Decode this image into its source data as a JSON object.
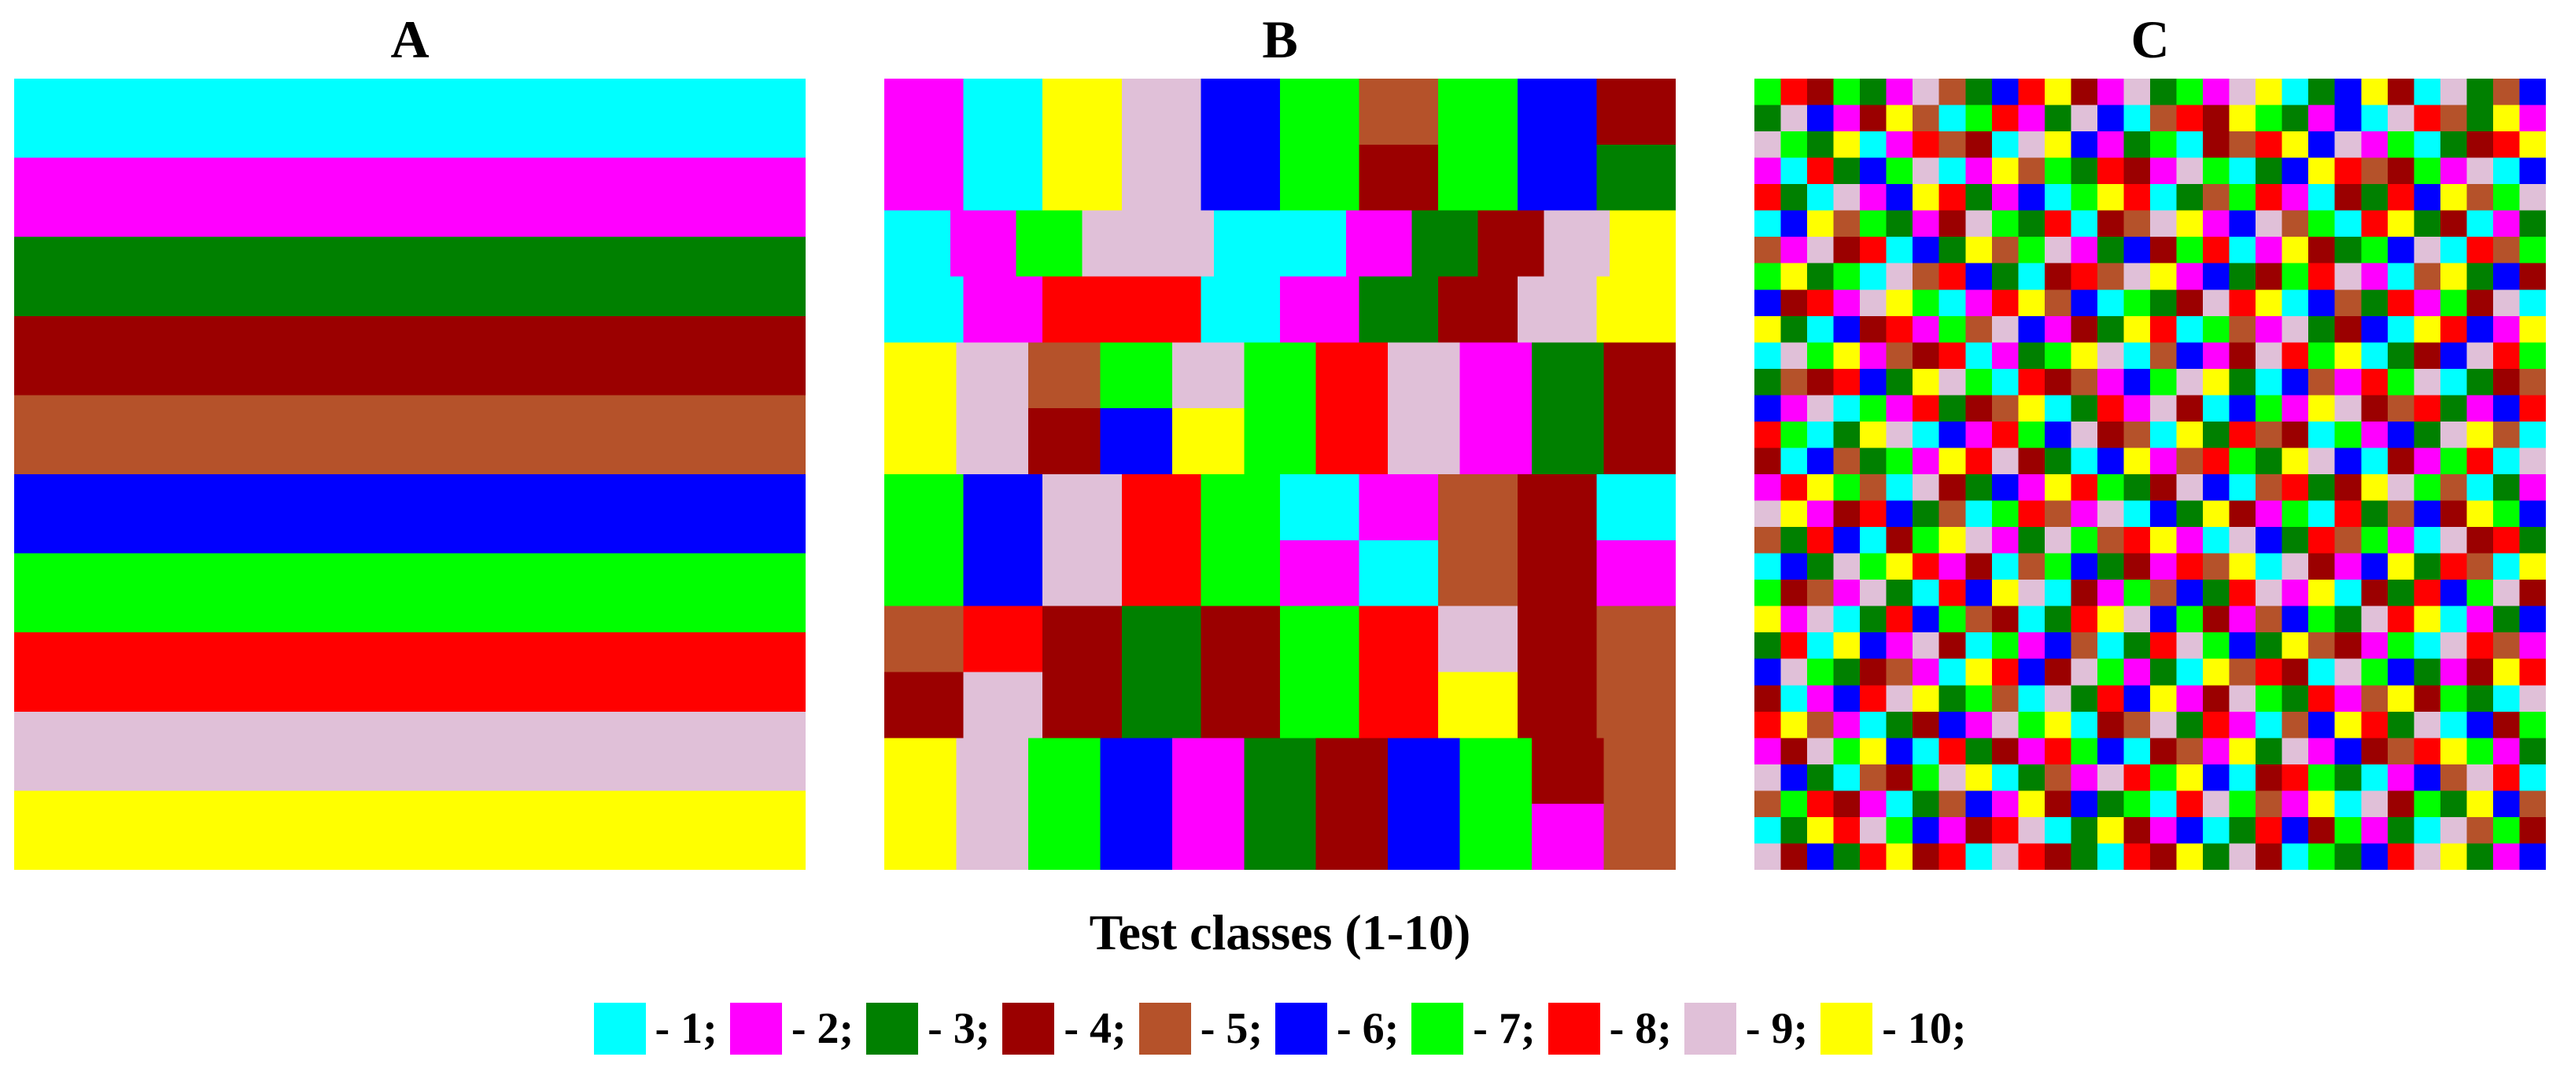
{
  "panels": [
    {
      "title": "A"
    },
    {
      "title": "B"
    },
    {
      "title": "C"
    }
  ],
  "caption": "Test classes (1-10)",
  "legend": [
    {
      "label": "- 1;",
      "color": "#00ffff"
    },
    {
      "label": "- 2;",
      "color": "#ff00ff"
    },
    {
      "label": "- 3;",
      "color": "#008000"
    },
    {
      "label": "- 4;",
      "color": "#9b0000"
    },
    {
      "label": "- 5;",
      "color": "#b5522a"
    },
    {
      "label": "- 6;",
      "color": "#0000ff"
    },
    {
      "label": "- 7;",
      "color": "#00ff00"
    },
    {
      "label": "- 8;",
      "color": "#ff0000"
    },
    {
      "label": "- 9;",
      "color": "#e0c0d8"
    },
    {
      "label": "- 10;",
      "color": "#ffff00"
    }
  ],
  "panel_a": {
    "stripe_classes": [
      1,
      2,
      3,
      4,
      5,
      6,
      7,
      8,
      9,
      10
    ]
  },
  "panel_b": {
    "grid": [
      [
        2,
        1,
        10,
        9,
        6,
        7,
        5,
        7,
        6,
        4
      ],
      [
        2,
        1,
        10,
        9,
        6,
        7,
        4,
        7,
        6,
        3
      ],
      [
        1,
        2,
        7,
        9,
        9,
        1,
        1,
        2,
        3,
        4,
        9,
        10
      ],
      [
        1,
        2,
        8,
        8,
        1,
        2,
        3,
        4,
        9,
        10
      ],
      [
        10,
        9,
        5,
        7,
        9,
        7,
        8,
        9,
        2,
        3,
        4
      ],
      [
        10,
        9,
        4,
        6,
        10,
        7,
        8,
        9,
        2,
        3,
        4
      ],
      [
        7,
        6,
        9,
        8,
        7,
        1,
        2,
        5,
        4,
        1
      ],
      [
        7,
        6,
        9,
        8,
        7,
        2,
        1,
        5,
        4,
        2
      ],
      [
        5,
        8,
        4,
        3,
        4,
        7,
        8,
        9,
        4,
        5
      ],
      [
        4,
        9,
        4,
        3,
        4,
        7,
        8,
        10,
        4,
        5
      ],
      [
        10,
        9,
        7,
        6,
        2,
        3,
        4,
        6,
        7,
        4,
        5
      ],
      [
        10,
        9,
        7,
        6,
        2,
        3,
        4,
        6,
        7,
        2,
        5
      ]
    ]
  },
  "panel_c": {
    "grid": [
      [
        7,
        8,
        4,
        7,
        3,
        2,
        9,
        5,
        3,
        6,
        8,
        10,
        4,
        2,
        9,
        3,
        7,
        2,
        9,
        10,
        1,
        3,
        6,
        10,
        4,
        1,
        9,
        3,
        5,
        6
      ],
      [
        3,
        9,
        6,
        2,
        4,
        10,
        5,
        1,
        7,
        8,
        2,
        3,
        9,
        6,
        1,
        5,
        8,
        4,
        10,
        7,
        3,
        2,
        6,
        1,
        9,
        8,
        5,
        3,
        10,
        2
      ],
      [
        9,
        7,
        3,
        10,
        1,
        2,
        8,
        5,
        4,
        1,
        9,
        10,
        6,
        2,
        3,
        7,
        1,
        4,
        5,
        8,
        10,
        6,
        9,
        2,
        7,
        1,
        3,
        4,
        8,
        10
      ],
      [
        2,
        1,
        8,
        3,
        6,
        7,
        9,
        1,
        2,
        10,
        5,
        7,
        3,
        8,
        4,
        2,
        9,
        7,
        1,
        3,
        6,
        10,
        8,
        5,
        4,
        7,
        2,
        9,
        1,
        6
      ],
      [
        8,
        3,
        1,
        9,
        2,
        6,
        10,
        8,
        3,
        2,
        6,
        1,
        7,
        10,
        8,
        1,
        3,
        5,
        7,
        8,
        2,
        1,
        4,
        3,
        8,
        6,
        10,
        5,
        7,
        9
      ],
      [
        1,
        6,
        10,
        5,
        7,
        3,
        2,
        4,
        9,
        7,
        3,
        8,
        1,
        4,
        5,
        9,
        10,
        2,
        6,
        9,
        5,
        7,
        1,
        8,
        10,
        3,
        4,
        1,
        2,
        3
      ],
      [
        5,
        2,
        9,
        4,
        8,
        1,
        6,
        3,
        10,
        5,
        7,
        9,
        2,
        3,
        6,
        4,
        7,
        8,
        1,
        2,
        10,
        4,
        3,
        7,
        6,
        9,
        1,
        8,
        5,
        7
      ],
      [
        7,
        10,
        3,
        7,
        1,
        9,
        5,
        8,
        6,
        3,
        1,
        4,
        8,
        5,
        9,
        10,
        2,
        6,
        3,
        4,
        7,
        8,
        9,
        2,
        1,
        5,
        10,
        3,
        6,
        4
      ],
      [
        6,
        4,
        8,
        2,
        9,
        10,
        7,
        1,
        2,
        8,
        10,
        5,
        6,
        1,
        7,
        3,
        4,
        9,
        8,
        10,
        1,
        6,
        5,
        3,
        8,
        2,
        7,
        4,
        9,
        1
      ],
      [
        10,
        3,
        1,
        6,
        4,
        8,
        2,
        7,
        5,
        9,
        6,
        2,
        4,
        3,
        10,
        8,
        1,
        7,
        5,
        2,
        9,
        3,
        4,
        6,
        1,
        10,
        8,
        6,
        2,
        10
      ],
      [
        1,
        9,
        7,
        10,
        2,
        5,
        4,
        8,
        1,
        2,
        3,
        7,
        10,
        9,
        1,
        5,
        6,
        2,
        4,
        9,
        8,
        7,
        10,
        1,
        3,
        4,
        6,
        9,
        8,
        7
      ],
      [
        3,
        5,
        4,
        8,
        6,
        3,
        10,
        9,
        7,
        1,
        8,
        4,
        5,
        2,
        6,
        7,
        9,
        10,
        3,
        1,
        6,
        5,
        2,
        8,
        7,
        9,
        1,
        3,
        4,
        5
      ],
      [
        6,
        2,
        9,
        1,
        7,
        2,
        8,
        3,
        4,
        5,
        10,
        1,
        3,
        8,
        2,
        9,
        4,
        1,
        6,
        7,
        2,
        10,
        9,
        4,
        5,
        8,
        3,
        2,
        6,
        8
      ],
      [
        8,
        7,
        1,
        3,
        10,
        9,
        1,
        6,
        2,
        8,
        7,
        6,
        9,
        4,
        5,
        1,
        10,
        3,
        8,
        5,
        4,
        1,
        7,
        2,
        6,
        3,
        9,
        10,
        5,
        1
      ],
      [
        4,
        1,
        6,
        5,
        3,
        7,
        2,
        10,
        8,
        9,
        4,
        3,
        1,
        6,
        10,
        2,
        5,
        8,
        7,
        3,
        10,
        9,
        6,
        1,
        4,
        2,
        7,
        8,
        1,
        9
      ],
      [
        2,
        8,
        10,
        7,
        5,
        1,
        9,
        4,
        3,
        6,
        2,
        10,
        8,
        7,
        3,
        4,
        9,
        6,
        1,
        5,
        8,
        3,
        4,
        10,
        9,
        7,
        5,
        1,
        3,
        2
      ],
      [
        9,
        10,
        2,
        4,
        8,
        6,
        3,
        5,
        1,
        7,
        8,
        5,
        2,
        9,
        1,
        6,
        3,
        10,
        4,
        2,
        7,
        1,
        8,
        3,
        5,
        6,
        4,
        10,
        7,
        6
      ],
      [
        5,
        3,
        8,
        6,
        1,
        4,
        7,
        10,
        9,
        2,
        3,
        9,
        7,
        5,
        8,
        10,
        2,
        1,
        9,
        6,
        3,
        8,
        5,
        7,
        2,
        1,
        9,
        4,
        8,
        3
      ],
      [
        1,
        6,
        3,
        9,
        7,
        10,
        8,
        2,
        4,
        1,
        5,
        7,
        6,
        3,
        4,
        2,
        8,
        5,
        10,
        1,
        9,
        4,
        2,
        6,
        10,
        3,
        8,
        5,
        1,
        10
      ],
      [
        7,
        4,
        5,
        2,
        9,
        3,
        1,
        8,
        6,
        10,
        9,
        1,
        4,
        2,
        7,
        5,
        6,
        3,
        8,
        9,
        2,
        10,
        1,
        4,
        3,
        8,
        6,
        7,
        9,
        4
      ],
      [
        10,
        2,
        9,
        1,
        3,
        8,
        6,
        7,
        5,
        4,
        1,
        3,
        8,
        10,
        9,
        6,
        7,
        4,
        2,
        5,
        6,
        7,
        3,
        9,
        8,
        10,
        1,
        2,
        3,
        6
      ],
      [
        3,
        8,
        1,
        10,
        6,
        2,
        9,
        4,
        1,
        7,
        2,
        6,
        5,
        1,
        3,
        8,
        9,
        7,
        6,
        3,
        10,
        5,
        4,
        2,
        7,
        1,
        9,
        8,
        5,
        2
      ],
      [
        6,
        9,
        7,
        3,
        4,
        5,
        2,
        1,
        10,
        8,
        6,
        4,
        9,
        7,
        2,
        3,
        1,
        10,
        5,
        8,
        4,
        1,
        9,
        7,
        6,
        3,
        2,
        4,
        10,
        8
      ],
      [
        4,
        1,
        2,
        6,
        8,
        9,
        10,
        3,
        7,
        5,
        1,
        9,
        3,
        8,
        6,
        10,
        2,
        4,
        9,
        7,
        3,
        8,
        2,
        5,
        10,
        4,
        7,
        3,
        1,
        9
      ],
      [
        8,
        10,
        5,
        2,
        1,
        3,
        4,
        6,
        2,
        9,
        7,
        10,
        1,
        4,
        5,
        9,
        3,
        8,
        2,
        1,
        5,
        6,
        10,
        8,
        3,
        9,
        1,
        6,
        4,
        7
      ],
      [
        2,
        4,
        9,
        7,
        10,
        6,
        1,
        8,
        3,
        4,
        2,
        8,
        7,
        6,
        1,
        4,
        5,
        2,
        10,
        3,
        9,
        2,
        6,
        4,
        5,
        8,
        10,
        7,
        2,
        3
      ],
      [
        9,
        6,
        3,
        1,
        5,
        4,
        7,
        9,
        10,
        1,
        3,
        5,
        2,
        9,
        8,
        7,
        10,
        6,
        1,
        4,
        8,
        7,
        3,
        1,
        2,
        6,
        5,
        9,
        8,
        1
      ],
      [
        5,
        7,
        8,
        4,
        2,
        1,
        3,
        5,
        6,
        2,
        10,
        4,
        6,
        3,
        7,
        1,
        8,
        9,
        7,
        5,
        2,
        10,
        1,
        9,
        4,
        7,
        3,
        10,
        6,
        5
      ],
      [
        1,
        3,
        10,
        8,
        9,
        7,
        6,
        2,
        4,
        8,
        9,
        1,
        3,
        10,
        4,
        2,
        6,
        1,
        3,
        8,
        6,
        4,
        7,
        2,
        3,
        1,
        9,
        5,
        7,
        4
      ],
      [
        9,
        4,
        6,
        3,
        8,
        10,
        4,
        8,
        1,
        9,
        8,
        4,
        3,
        1,
        8,
        4,
        10,
        3,
        9,
        4,
        1,
        7,
        3,
        6,
        8,
        9,
        10,
        3,
        2,
        6
      ]
    ]
  }
}
